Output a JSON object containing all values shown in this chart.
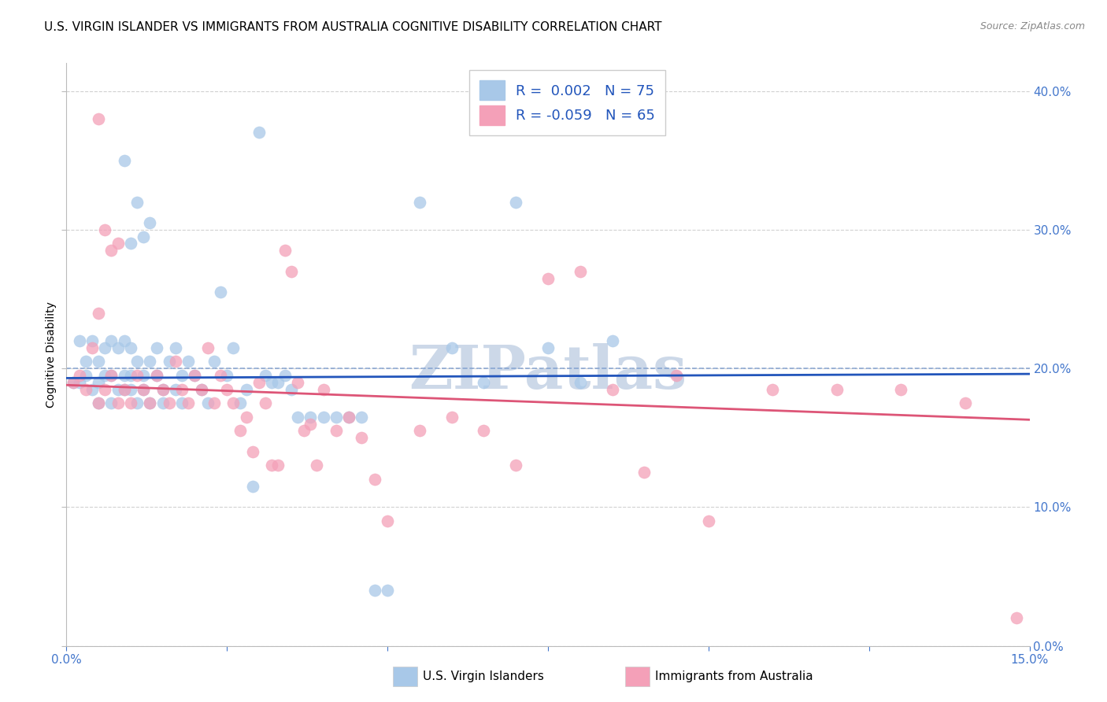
{
  "title": "U.S. VIRGIN ISLANDER VS IMMIGRANTS FROM AUSTRALIA COGNITIVE DISABILITY CORRELATION CHART",
  "source": "Source: ZipAtlas.com",
  "xmin": 0.0,
  "xmax": 0.15,
  "ymin": 0.0,
  "ymax": 0.42,
  "legend1_label": "U.S. Virgin Islanders",
  "legend2_label": "Immigrants from Australia",
  "R1": "0.002",
  "N1": "75",
  "R2": "-0.059",
  "N2": "65",
  "color_blue": "#a8c8e8",
  "color_pink": "#f4a0b8",
  "line_blue": "#2255bb",
  "line_pink": "#dd5577",
  "hline_color": "#7799cc",
  "watermark": "ZIPatlas",
  "watermark_color": "#ccd8e8",
  "blue_scatter_x": [
    0.001,
    0.002,
    0.002,
    0.003,
    0.003,
    0.004,
    0.004,
    0.005,
    0.005,
    0.005,
    0.006,
    0.006,
    0.007,
    0.007,
    0.007,
    0.008,
    0.008,
    0.009,
    0.009,
    0.009,
    0.01,
    0.01,
    0.01,
    0.011,
    0.011,
    0.012,
    0.012,
    0.013,
    0.013,
    0.014,
    0.014,
    0.015,
    0.015,
    0.016,
    0.017,
    0.017,
    0.018,
    0.018,
    0.019,
    0.02,
    0.021,
    0.022,
    0.023,
    0.024,
    0.025,
    0.026,
    0.027,
    0.028,
    0.029,
    0.03,
    0.031,
    0.032,
    0.033,
    0.034,
    0.035,
    0.036,
    0.038,
    0.04,
    0.042,
    0.044,
    0.046,
    0.048,
    0.05,
    0.055,
    0.06,
    0.065,
    0.07,
    0.075,
    0.08,
    0.085,
    0.009,
    0.01,
    0.011,
    0.012,
    0.013
  ],
  "blue_scatter_y": [
    0.19,
    0.22,
    0.19,
    0.195,
    0.205,
    0.185,
    0.22,
    0.19,
    0.205,
    0.175,
    0.195,
    0.215,
    0.195,
    0.175,
    0.22,
    0.185,
    0.215,
    0.185,
    0.195,
    0.22,
    0.195,
    0.185,
    0.215,
    0.175,
    0.205,
    0.185,
    0.195,
    0.205,
    0.175,
    0.195,
    0.215,
    0.185,
    0.175,
    0.205,
    0.185,
    0.215,
    0.195,
    0.175,
    0.205,
    0.195,
    0.185,
    0.175,
    0.205,
    0.255,
    0.195,
    0.215,
    0.175,
    0.185,
    0.115,
    0.37,
    0.195,
    0.19,
    0.19,
    0.195,
    0.185,
    0.165,
    0.165,
    0.165,
    0.165,
    0.165,
    0.165,
    0.04,
    0.04,
    0.32,
    0.215,
    0.19,
    0.32,
    0.215,
    0.19,
    0.22,
    0.35,
    0.29,
    0.32,
    0.295,
    0.305
  ],
  "pink_scatter_x": [
    0.001,
    0.002,
    0.003,
    0.004,
    0.005,
    0.005,
    0.006,
    0.007,
    0.008,
    0.009,
    0.01,
    0.011,
    0.012,
    0.013,
    0.014,
    0.015,
    0.016,
    0.017,
    0.018,
    0.019,
    0.02,
    0.021,
    0.022,
    0.023,
    0.024,
    0.025,
    0.026,
    0.027,
    0.028,
    0.029,
    0.03,
    0.031,
    0.032,
    0.033,
    0.034,
    0.035,
    0.036,
    0.037,
    0.038,
    0.039,
    0.04,
    0.042,
    0.044,
    0.046,
    0.048,
    0.05,
    0.055,
    0.06,
    0.065,
    0.07,
    0.075,
    0.08,
    0.085,
    0.09,
    0.095,
    0.1,
    0.11,
    0.12,
    0.13,
    0.14,
    0.148,
    0.005,
    0.006,
    0.007,
    0.008
  ],
  "pink_scatter_y": [
    0.19,
    0.195,
    0.185,
    0.215,
    0.175,
    0.38,
    0.185,
    0.195,
    0.175,
    0.185,
    0.175,
    0.195,
    0.185,
    0.175,
    0.195,
    0.185,
    0.175,
    0.205,
    0.185,
    0.175,
    0.195,
    0.185,
    0.215,
    0.175,
    0.195,
    0.185,
    0.175,
    0.155,
    0.165,
    0.14,
    0.19,
    0.175,
    0.13,
    0.13,
    0.285,
    0.27,
    0.19,
    0.155,
    0.16,
    0.13,
    0.185,
    0.155,
    0.165,
    0.15,
    0.12,
    0.09,
    0.155,
    0.165,
    0.155,
    0.13,
    0.265,
    0.27,
    0.185,
    0.125,
    0.195,
    0.09,
    0.185,
    0.185,
    0.185,
    0.175,
    0.02,
    0.24,
    0.3,
    0.285,
    0.29
  ],
  "blue_trend_x": [
    0.0,
    0.15
  ],
  "blue_trend_y": [
    0.193,
    0.196
  ],
  "pink_trend_x": [
    0.0,
    0.15
  ],
  "pink_trend_y": [
    0.188,
    0.163
  ],
  "hline_y": 0.2,
  "grid_color": "#cccccc",
  "bg_color": "#ffffff",
  "title_fontsize": 11,
  "source_fontsize": 9,
  "label_fontsize": 10,
  "tick_fontsize": 11,
  "legend_fontsize": 13
}
